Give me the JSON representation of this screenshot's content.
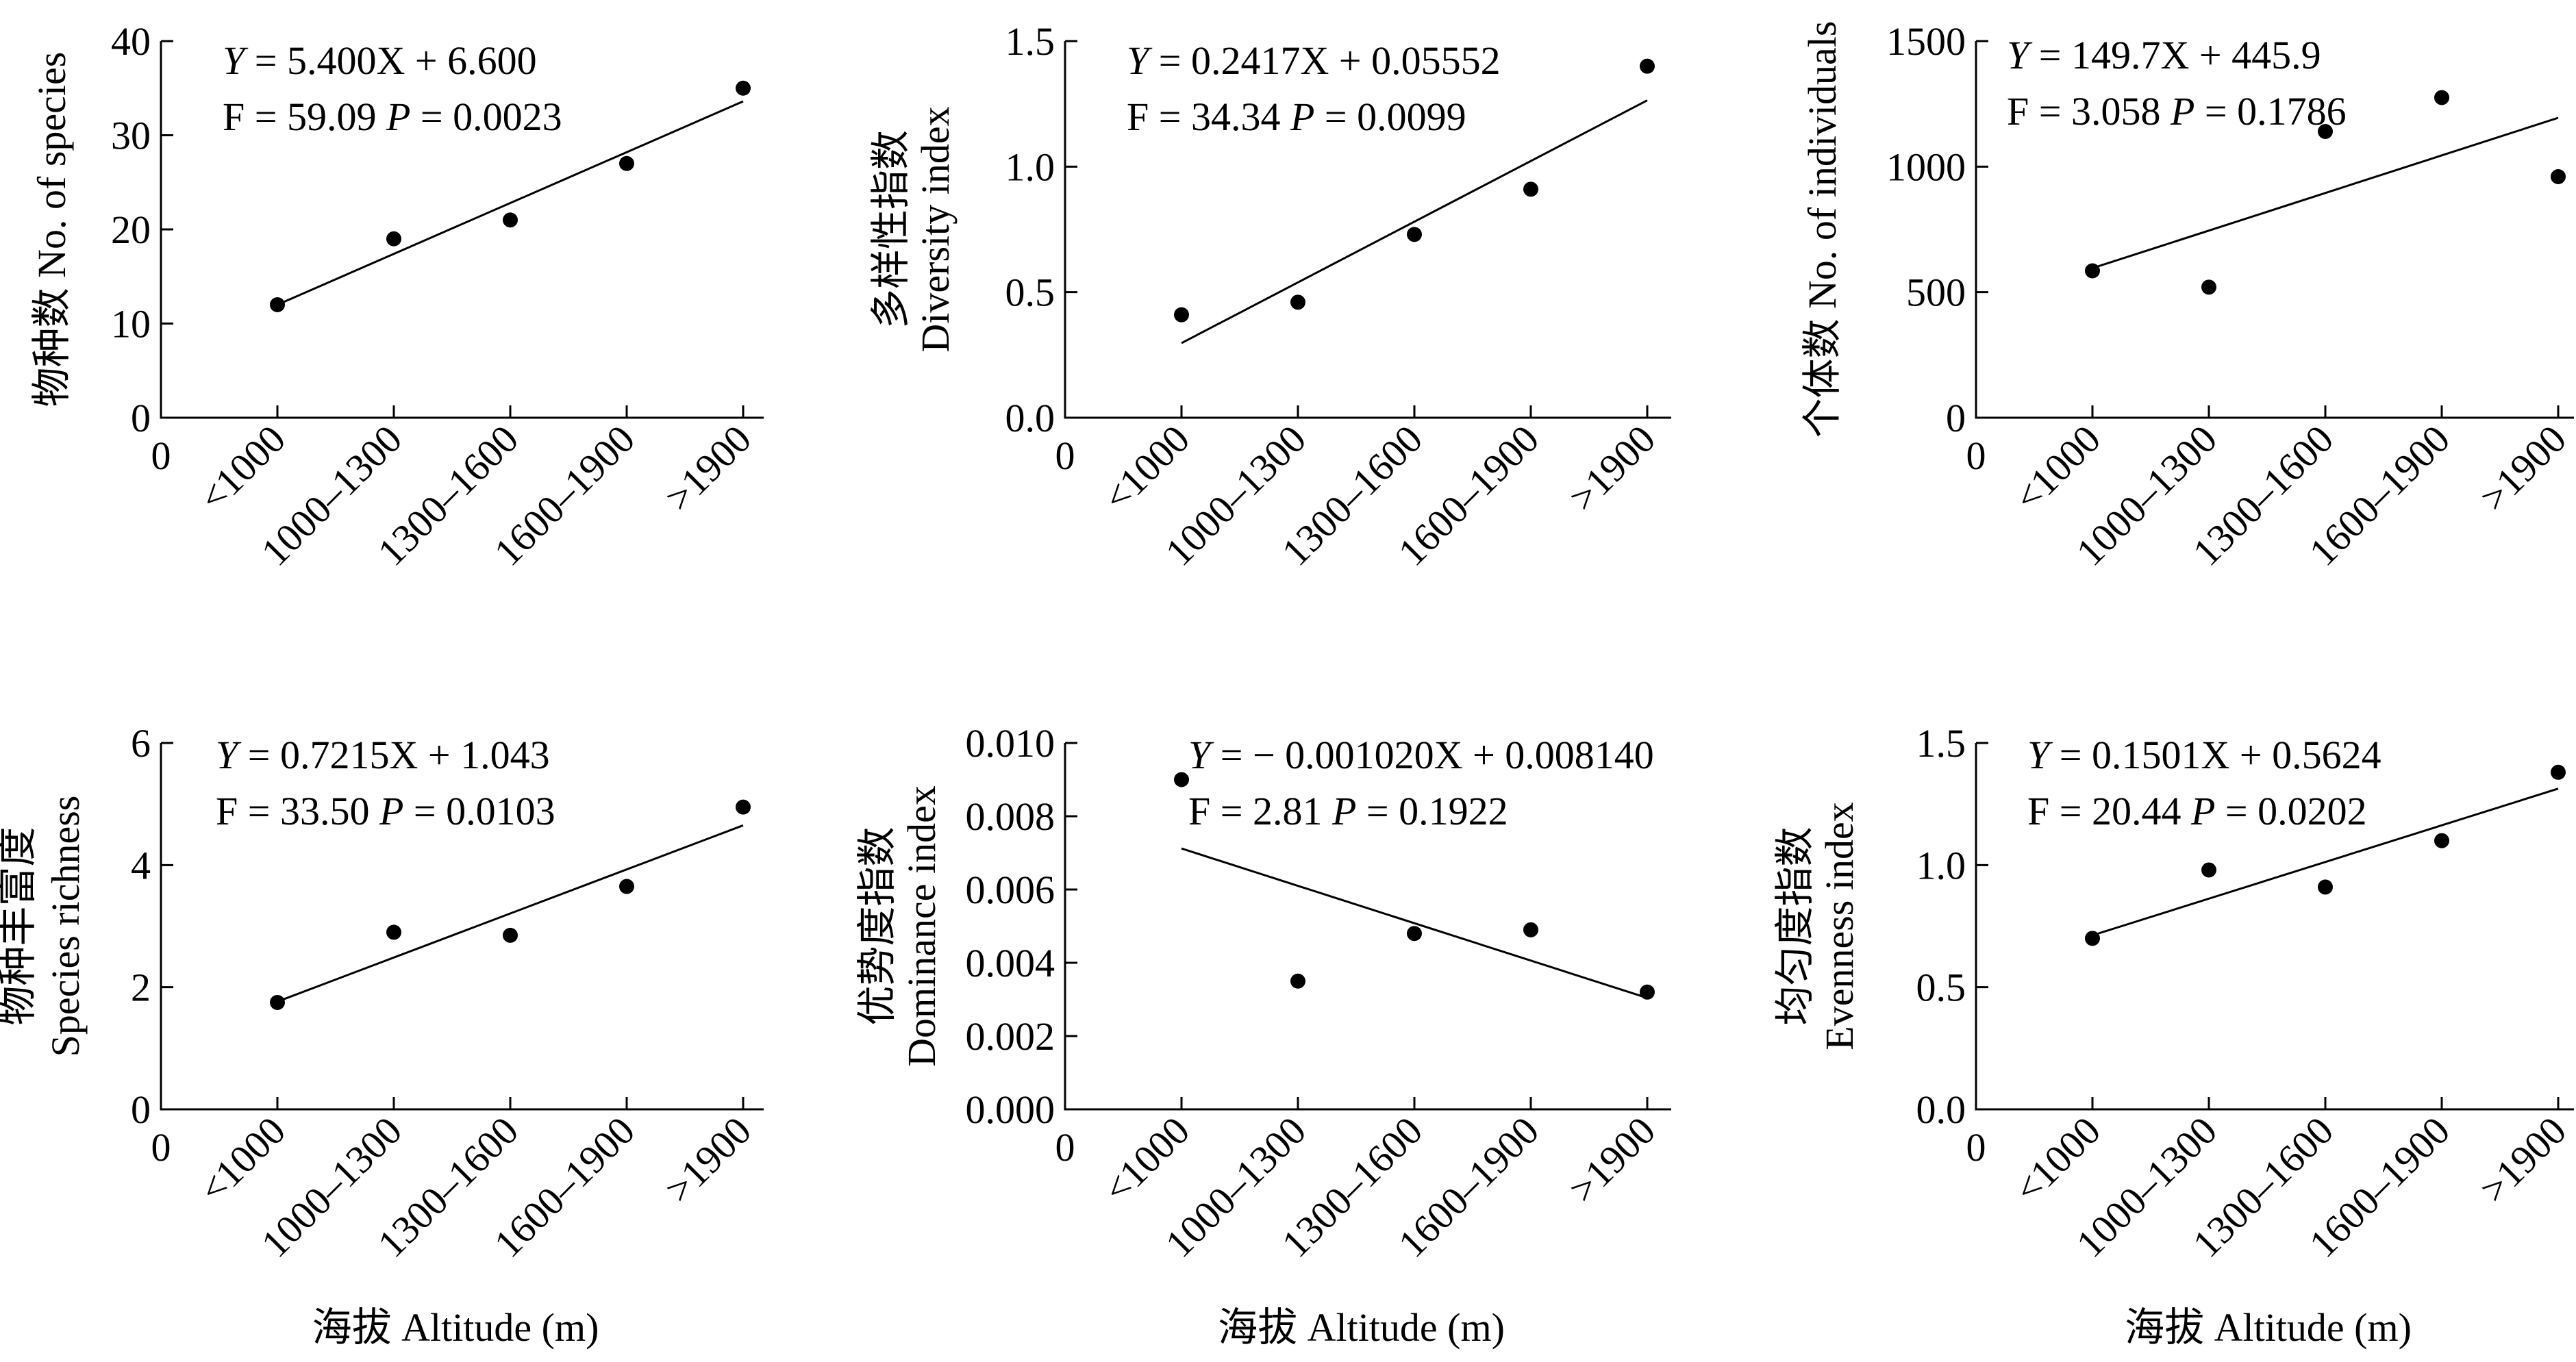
{
  "xlabel_shared": "海拔 Altitude (m)",
  "chart_data": [
    {
      "type": "scatter",
      "ylabel_lines": [
        "物种数 No. of species"
      ],
      "categories": [
        "<1000",
        "1000–1300",
        "1300–1600",
        "1600–1900",
        ">1900"
      ],
      "origin_label": "0",
      "ylim": [
        0,
        40
      ],
      "yticks": [
        0,
        10,
        20,
        30,
        40
      ],
      "ytick_labels": [
        "0",
        "10",
        "20",
        "30",
        "40"
      ],
      "values": [
        12,
        19,
        21,
        27,
        35
      ],
      "fit": {
        "slope": 5.4,
        "intercept": 6.6
      },
      "eq_line1": {
        "italic": "Y",
        "rest": " = 5.400X + 6.600"
      },
      "eq_line2": {
        "pre": "F = 59.09 ",
        "italic": "P",
        "rest": " = 0.0023"
      },
      "xlabel": ""
    },
    {
      "type": "scatter",
      "ylabel_lines": [
        "多样性指数",
        "Diversity index"
      ],
      "categories": [
        "<1000",
        "1000–1300",
        "1300–1600",
        "1600–1900",
        ">1900"
      ],
      "origin_label": "0",
      "ylim": [
        0,
        1.5
      ],
      "yticks": [
        0,
        0.5,
        1.0,
        1.5
      ],
      "ytick_labels": [
        "0.0",
        "0.5",
        "1.0",
        "1.5"
      ],
      "values": [
        0.41,
        0.46,
        0.73,
        0.91,
        1.4
      ],
      "fit": {
        "slope": 0.2417,
        "intercept": 0.05552
      },
      "eq_line1": {
        "italic": "Y",
        "rest": " = 0.2417X + 0.05552"
      },
      "eq_line2": {
        "pre": "F = 34.34 ",
        "italic": "P",
        "rest": " = 0.0099"
      },
      "xlabel": ""
    },
    {
      "type": "scatter",
      "ylabel_lines": [
        "个体数 No. of individuals"
      ],
      "categories": [
        "<1000",
        "1000–1300",
        "1300–1600",
        "1600–1900",
        ">1900"
      ],
      "origin_label": "0",
      "ylim": [
        0,
        1500
      ],
      "yticks": [
        0,
        500,
        1000,
        1500
      ],
      "ytick_labels": [
        "0",
        "500",
        "1000",
        "1500"
      ],
      "values": [
        585,
        520,
        1140,
        1275,
        960
      ],
      "fit": {
        "slope": 149.7,
        "intercept": 445.9
      },
      "eq_line1": {
        "italic": "Y",
        "rest": " = 149.7X + 445.9"
      },
      "eq_line2": {
        "pre": "F = 3.058 ",
        "italic": "P",
        "rest": " = 0.1786"
      },
      "xlabel": ""
    },
    {
      "type": "scatter",
      "ylabel_lines": [
        "物种丰富度",
        "Species richness"
      ],
      "categories": [
        "<1000",
        "1000–1300",
        "1300–1600",
        "1600–1900",
        ">1900"
      ],
      "origin_label": "0",
      "ylim": [
        0,
        6
      ],
      "yticks": [
        0,
        2,
        4,
        6
      ],
      "ytick_labels": [
        "0",
        "2",
        "4",
        "6"
      ],
      "values": [
        1.75,
        2.9,
        2.85,
        3.65,
        4.95
      ],
      "fit": {
        "slope": 0.7215,
        "intercept": 1.043
      },
      "eq_line1": {
        "italic": "Y",
        "rest": " = 0.7215X + 1.043"
      },
      "eq_line2": {
        "pre": "F = 33.50 ",
        "italic": "P",
        "rest": " = 0.0103"
      },
      "xlabel": "海拔 Altitude (m)"
    },
    {
      "type": "scatter",
      "ylabel_lines": [
        "优势度指数",
        "Dominance index"
      ],
      "categories": [
        "<1000",
        "1000–1300",
        "1300–1600",
        "1600–1900",
        ">1900"
      ],
      "origin_label": "0",
      "ylim": [
        0,
        0.01
      ],
      "yticks": [
        0,
        0.002,
        0.004,
        0.006,
        0.008,
        0.01
      ],
      "ytick_labels": [
        "0.000",
        "0.002",
        "0.004",
        "0.006",
        "0.008",
        "0.010"
      ],
      "values": [
        0.009,
        0.0035,
        0.0048,
        0.0049,
        0.0032
      ],
      "fit": {
        "slope": -0.00102,
        "intercept": 0.00814
      },
      "eq_line1": {
        "italic": "Y",
        "rest": " = − 0.001020X + 0.008140"
      },
      "eq_line2": {
        "pre": "F = 2.81 ",
        "italic": "P",
        "rest": " = 0.1922"
      },
      "xlabel": "海拔 Altitude (m)"
    },
    {
      "type": "scatter",
      "ylabel_lines": [
        "均匀度指数",
        "Evenness index"
      ],
      "categories": [
        "<1000",
        "1000–1300",
        "1300–1600",
        "1600–1900",
        ">1900"
      ],
      "origin_label": "0",
      "ylim": [
        0,
        1.5
      ],
      "yticks": [
        0,
        0.5,
        1.0,
        1.5
      ],
      "ytick_labels": [
        "0.0",
        "0.5",
        "1.0",
        "1.5"
      ],
      "values": [
        0.7,
        0.98,
        0.91,
        1.1,
        1.38
      ],
      "fit": {
        "slope": 0.1501,
        "intercept": 0.5624
      },
      "eq_line1": {
        "italic": "Y",
        "rest": " = 0.1501X + 0.5624"
      },
      "eq_line2": {
        "pre": "F = 20.44 ",
        "italic": "P",
        "rest": " = 0.0202"
      },
      "xlabel": "海拔 Altitude (m)"
    }
  ]
}
